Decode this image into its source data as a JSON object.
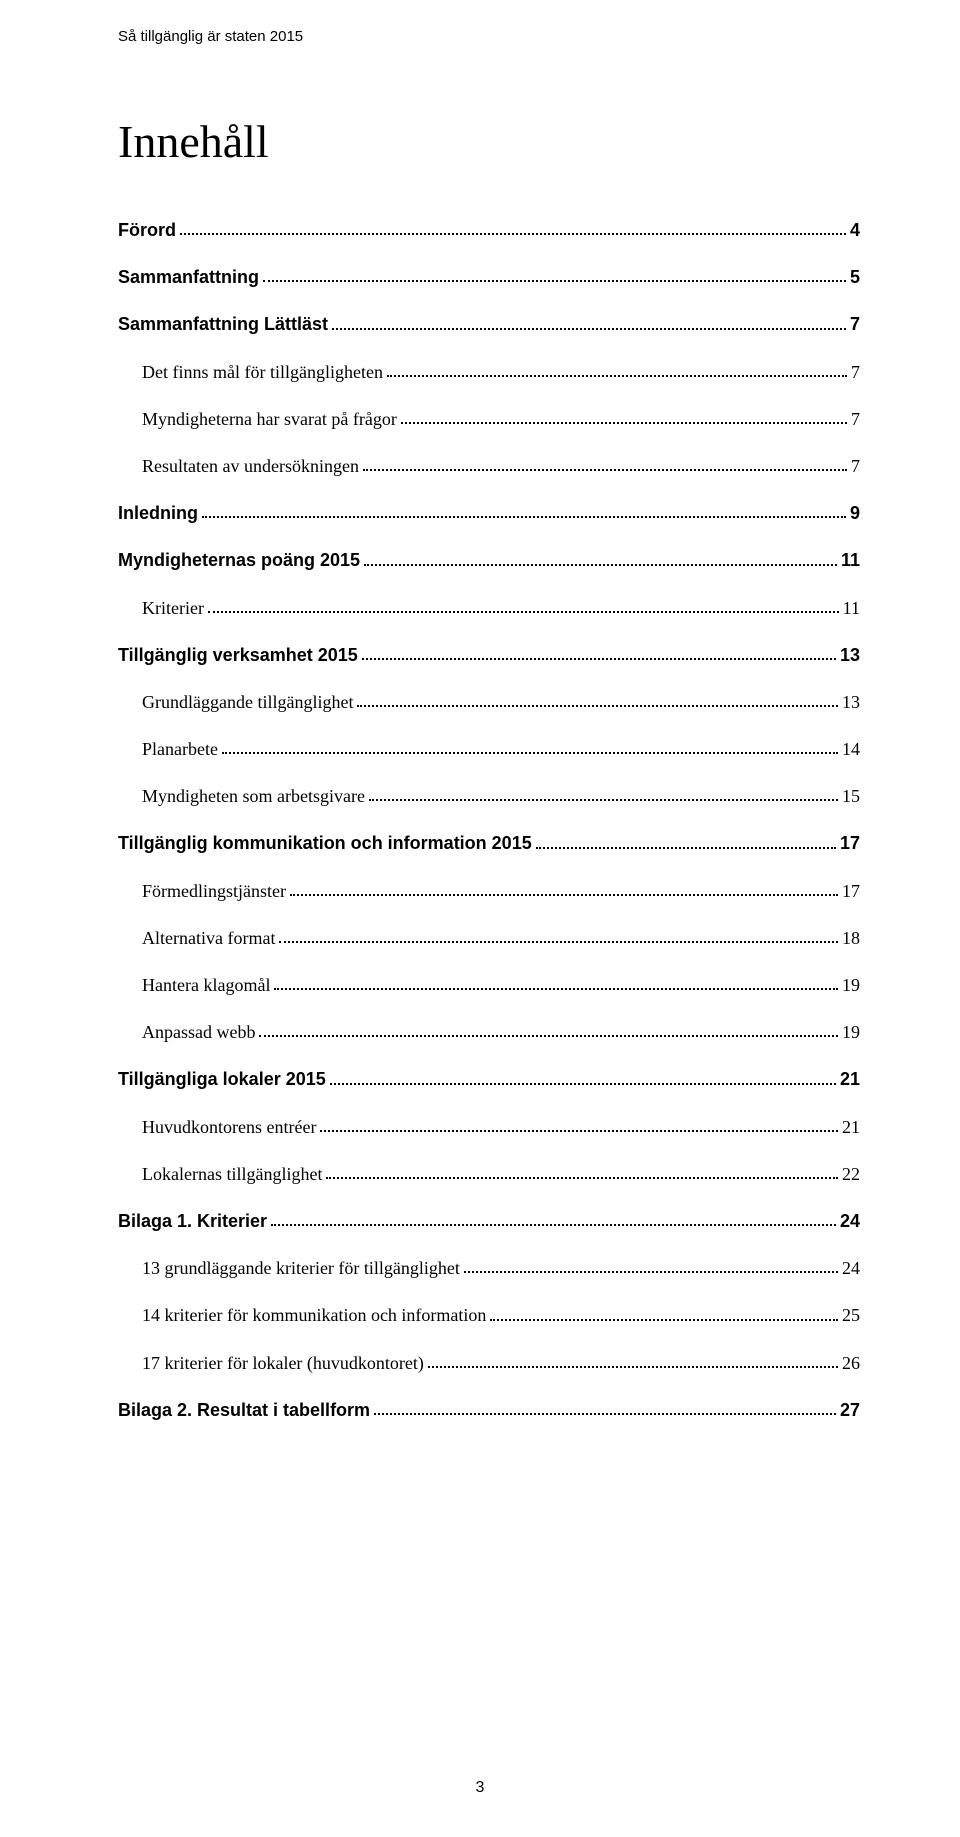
{
  "running_header": "Så tillgänglig är staten 2015",
  "doc_title": "Innehåll",
  "page_number": "3",
  "toc": [
    {
      "label": "Förord",
      "page": "4",
      "level": 0,
      "bold": true
    },
    {
      "label": "Sammanfattning",
      "page": "5",
      "level": 0,
      "bold": true
    },
    {
      "label": "Sammanfattning Lättläst",
      "page": "7",
      "level": 0,
      "bold": true
    },
    {
      "label": "Det finns mål för tillgängligheten",
      "page": "7",
      "level": 1,
      "bold": false
    },
    {
      "label": "Myndigheterna har svarat på frågor",
      "page": "7",
      "level": 1,
      "bold": false
    },
    {
      "label": "Resultaten av undersökningen",
      "page": "7",
      "level": 1,
      "bold": false
    },
    {
      "label": "Inledning",
      "page": "9",
      "level": 0,
      "bold": true
    },
    {
      "label": "Myndigheternas poäng 2015",
      "page": "11",
      "level": 0,
      "bold": true
    },
    {
      "label": "Kriterier",
      "page": "11",
      "level": 1,
      "bold": false
    },
    {
      "label": "Tillgänglig verksamhet 2015",
      "page": "13",
      "level": 0,
      "bold": true
    },
    {
      "label": "Grundläggande tillgänglighet",
      "page": "13",
      "level": 1,
      "bold": false
    },
    {
      "label": "Planarbete",
      "page": "14",
      "level": 1,
      "bold": false
    },
    {
      "label": "Myndigheten som arbetsgivare",
      "page": "15",
      "level": 1,
      "bold": false
    },
    {
      "label": "Tillgänglig kommunikation och information 2015",
      "page": "17",
      "level": 0,
      "bold": true
    },
    {
      "label": "Förmedlingstjänster",
      "page": "17",
      "level": 1,
      "bold": false
    },
    {
      "label": "Alternativa format",
      "page": "18",
      "level": 1,
      "bold": false
    },
    {
      "label": "Hantera klagomål",
      "page": "19",
      "level": 1,
      "bold": false
    },
    {
      "label": "Anpassad webb",
      "page": "19",
      "level": 1,
      "bold": false
    },
    {
      "label": "Tillgängliga lokaler 2015",
      "page": "21",
      "level": 0,
      "bold": true
    },
    {
      "label": "Huvudkontorens entréer",
      "page": "21",
      "level": 1,
      "bold": false
    },
    {
      "label": "Lokalernas tillgänglighet",
      "page": "22",
      "level": 1,
      "bold": false
    },
    {
      "label": "Bilaga 1. Kriterier",
      "page": "24",
      "level": 0,
      "bold": true
    },
    {
      "label": "13 grundläggande kriterier för tillgänglighet",
      "page": "24",
      "level": 1,
      "bold": false
    },
    {
      "label": "14 kriterier för kommunikation och information",
      "page": "25",
      "level": 1,
      "bold": false
    },
    {
      "label": "17 kriterier för lokaler (huvudkontoret)",
      "page": "26",
      "level": 1,
      "bold": false
    },
    {
      "label": "Bilaga 2. Resultat i tabellform",
      "page": "27",
      "level": 0,
      "bold": true
    }
  ]
}
